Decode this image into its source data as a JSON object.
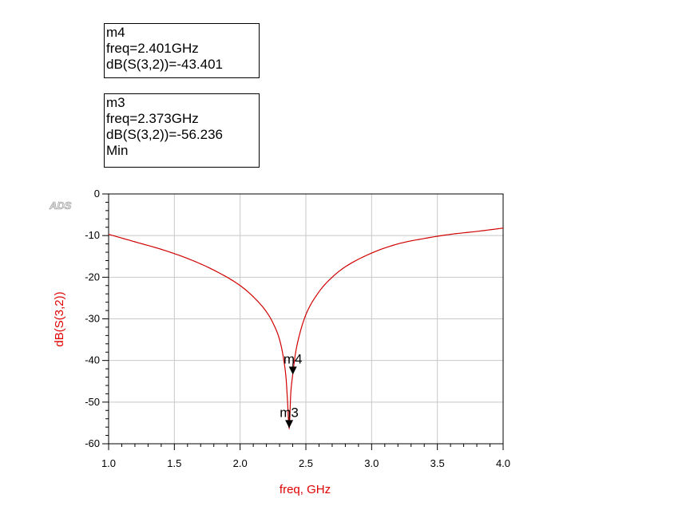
{
  "markers": [
    {
      "name": "m4",
      "freq_text": "freq=2.401GHz",
      "value_text": "dB(S(3,2))=-43.401",
      "note": "",
      "freq": 2.401,
      "value": -43.401
    },
    {
      "name": "m3",
      "freq_text": "freq=2.373GHz",
      "value_text": "dB(S(3,2))=-56.236",
      "note": "Min",
      "freq": 2.373,
      "value": -56.236
    }
  ],
  "logo": "ADS",
  "colors": {
    "trace": "#d00000",
    "axis_title": "#e00000",
    "grid": "#c8c8c8",
    "frame": "#000000"
  },
  "chart_data": {
    "type": "line",
    "xlabel": "freq, GHz",
    "ylabel": "dB(S(3,2))",
    "xlim": [
      1.0,
      4.0
    ],
    "ylim": [
      -60,
      0
    ],
    "xticks": [
      "1.0",
      "1.5",
      "2.0",
      "2.5",
      "3.0",
      "3.5",
      "4.0"
    ],
    "yticks": [
      "0",
      "-10",
      "-20",
      "-30",
      "-40",
      "-50",
      "-60"
    ],
    "grid": true,
    "series": [
      {
        "x": [
          1.0,
          1.2,
          1.4,
          1.6,
          1.8,
          2.0,
          2.1,
          2.2,
          2.25,
          2.3,
          2.33,
          2.35,
          2.36,
          2.373,
          2.385,
          2.4,
          2.42,
          2.45,
          2.5,
          2.6,
          2.7,
          2.8,
          3.0,
          3.2,
          3.4,
          3.6,
          3.8,
          4.0
        ],
        "y": [
          -9.7,
          -11.5,
          -13.3,
          -15.5,
          -18.3,
          -22.0,
          -24.7,
          -28.3,
          -31.0,
          -35.0,
          -39.5,
          -44.5,
          -49.5,
          -56.236,
          -48.0,
          -43.401,
          -38.5,
          -34.0,
          -29.0,
          -23.5,
          -20.0,
          -17.5,
          -14.2,
          -12.0,
          -10.7,
          -9.7,
          -9.0,
          -8.2
        ]
      }
    ]
  }
}
